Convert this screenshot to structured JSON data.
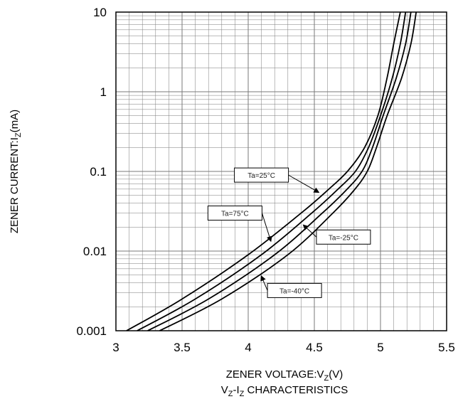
{
  "chart_data": {
    "type": "line",
    "title": "",
    "caption": [
      "V",
      "Z",
      "-I",
      "Z",
      " CHARACTERISTICS"
    ],
    "xlabel": [
      "ZENER VOLTAGE:V",
      "Z",
      "(V)"
    ],
    "ylabel": [
      "ZENER CURRENT:I",
      "Z",
      "(mA)"
    ],
    "x_scale": "linear",
    "y_scale": "log",
    "xlim": [
      3,
      5.5
    ],
    "ylim": [
      0.001,
      10
    ],
    "grid": true,
    "x_ticks": [
      "3",
      "3.5",
      "4",
      "4.5",
      "5",
      "5.5"
    ],
    "y_ticks": [
      "0.001",
      "0.01",
      "0.1",
      "1",
      "10"
    ],
    "series": [
      {
        "x": [
          3.08,
          3.5,
          4.0,
          4.4,
          4.6,
          4.75,
          4.88,
          4.98,
          5.05,
          5.1,
          5.15
        ],
        "y": [
          0.001,
          0.0025,
          0.009,
          0.03,
          0.058,
          0.1,
          0.2,
          0.5,
          1.5,
          4,
          10
        ]
      },
      {
        "x": [
          3.16,
          3.6,
          4.1,
          4.48,
          4.67,
          4.81,
          4.91,
          5.0,
          5.09,
          5.15,
          5.19
        ],
        "y": [
          0.001,
          0.0025,
          0.009,
          0.03,
          0.058,
          0.1,
          0.2,
          0.5,
          1.5,
          4,
          10
        ]
      },
      {
        "x": [
          3.24,
          3.7,
          4.2,
          4.56,
          4.74,
          4.86,
          4.94,
          5.02,
          5.12,
          5.19,
          5.23
        ],
        "y": [
          0.001,
          0.0025,
          0.009,
          0.03,
          0.058,
          0.1,
          0.2,
          0.5,
          1.5,
          4,
          10
        ]
      },
      {
        "x": [
          3.33,
          3.8,
          4.3,
          4.64,
          4.8,
          4.9,
          4.97,
          5.05,
          5.16,
          5.23,
          5.27
        ],
        "y": [
          0.001,
          0.0025,
          0.009,
          0.03,
          0.058,
          0.1,
          0.2,
          0.5,
          1.5,
          4,
          10
        ]
      }
    ],
    "annotations": [
      {
        "text": "Ta=25°C",
        "x": 4.1,
        "y": 0.09,
        "arrow_to": [
          4.53,
          0.055
        ]
      },
      {
        "text": "Ta=75°C",
        "x": 3.9,
        "y": 0.03,
        "arrow_to": [
          4.17,
          0.0135
        ]
      },
      {
        "text": "Ta=-25°C",
        "x": 4.72,
        "y": 0.015,
        "arrow_to": [
          4.42,
          0.021
        ]
      },
      {
        "text": "Ta=-40°C",
        "x": 4.35,
        "y": 0.0032,
        "arrow_to": [
          4.1,
          0.0048
        ]
      }
    ],
    "colors": {
      "curve": "#000000",
      "grid": "#7a7a7a",
      "frame": "#000000"
    }
  }
}
